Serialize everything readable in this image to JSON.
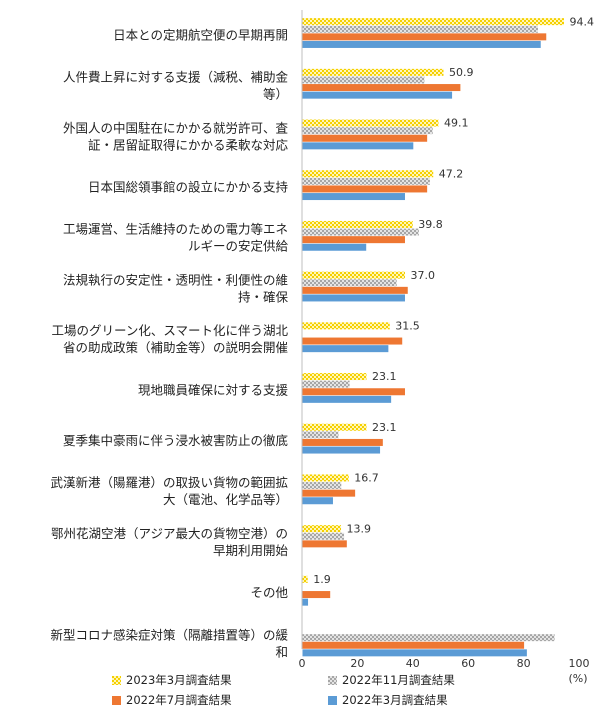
{
  "chart_data": {
    "type": "bar",
    "orientation": "horizontal",
    "unit": "(%)",
    "xlim": [
      0,
      100
    ],
    "xticks": [
      "0",
      "20",
      "40",
      "60",
      "80",
      "100"
    ],
    "grid": false,
    "legend_position": "bottom",
    "categories": [
      "日本との定期航空便の早期再開",
      "人件費上昇に対する支援（減税、補助金等）",
      "外国人の中国駐在にかかる就労許可、査証・居留証取得にかかる柔軟な対応",
      "日本国総領事館の設立にかかる支持",
      "工場運営、生活維持のための電力等エネルギーの安定供給",
      "法規執行の安定性・透明性・利便性の維持・確保",
      "工場のグリーン化、スマート化に伴う湖北省の助成政策（補助金等）の説明会開催",
      "現地職員確保に対する支援",
      "夏季集中豪雨に伴う浸水被害防止の徹底",
      "武漢新港（陽羅港）の取扱い貨物の範囲拡大（電池、化学品等）",
      "鄂州花湖空港（アジア最大の貨物空港）の早期利用開始",
      "その他",
      "新型コロナ感染症対策（隔離措置等）の緩和"
    ],
    "category_lines": [
      [
        "日本との定期航空便の早期再開"
      ],
      [
        "人件費上昇に対する支援（減税、補助金",
        "等）"
      ],
      [
        "外国人の中国駐在にかかる就労許可、査",
        "証・居留証取得にかかる柔軟な対応"
      ],
      [
        "日本国総領事館の設立にかかる支持"
      ],
      [
        "工場運営、生活維持のための電力等エネ",
        "ルギーの安定供給"
      ],
      [
        "法規執行の安定性・透明性・利便性の維",
        "持・確保"
      ],
      [
        "工場のグリーン化、スマート化に伴う湖北",
        "省の助成政策（補助金等）の説明会開催"
      ],
      [
        "現地職員確保に対する支援"
      ],
      [
        "夏季集中豪雨に伴う浸水被害防止の徹底"
      ],
      [
        "武漢新港（陽羅港）の取扱い貨物の範囲拡",
        "大（電池、化学品等）"
      ],
      [
        "鄂州花湖空港（アジア最大の貨物空港）の",
        "早期利用開始"
      ],
      [
        "その他"
      ],
      [
        "新型コロナ感染症対策（隔離措置等）の緩",
        "和"
      ]
    ],
    "series": [
      {
        "name": "2023年3月調査結果",
        "color": "#f5d000",
        "pattern": "checker",
        "values": [
          94.4,
          50.9,
          49.1,
          47.2,
          39.8,
          37.0,
          31.5,
          23.1,
          23.1,
          16.7,
          13.9,
          1.9,
          null
        ],
        "labels": [
          "94.4",
          "50.9",
          "49.1",
          "47.2",
          "39.8",
          "37.0",
          "31.5",
          "23.1",
          "23.1",
          "16.7",
          "13.9",
          "1.9",
          ""
        ]
      },
      {
        "name": "2022年11月調査結果",
        "color": "#a6a6a6",
        "pattern": "checker",
        "values": [
          85,
          44,
          47,
          46,
          42,
          34,
          0,
          17,
          13,
          14,
          15,
          0,
          91
        ]
      },
      {
        "name": "2022年7月調査結果",
        "color": "#ee7732",
        "pattern": "solid",
        "values": [
          88,
          57,
          45,
          45,
          37,
          38,
          36,
          37,
          29,
          19,
          16,
          10,
          80
        ]
      },
      {
        "name": "2022年3月調査結果",
        "color": "#5b9bd5",
        "pattern": "solid",
        "values": [
          86,
          54,
          40,
          37,
          23,
          37,
          31,
          32,
          28,
          11,
          0,
          2,
          81
        ]
      }
    ]
  }
}
